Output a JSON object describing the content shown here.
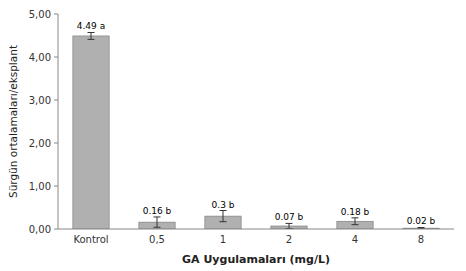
{
  "chart_data": {
    "type": "bar",
    "categories": [
      "Kontrol",
      "0,5",
      "1",
      "2",
      "4",
      "8"
    ],
    "values": [
      4.49,
      0.16,
      0.3,
      0.07,
      0.18,
      0.02
    ],
    "errors": [
      0.08,
      0.12,
      0.13,
      0.06,
      0.08,
      0.015
    ],
    "value_labels": [
      "4.49 a",
      "0.16 b",
      "0.3 b",
      "0.07 b",
      "0.18 b",
      "0.02 b"
    ],
    "data_labels": true,
    "color": "#b0b0b0",
    "x_label": "GA Uygulamaları (mg/L)",
    "y_label": "Sürgün ortalamaları/eksplant",
    "ylim": [
      0,
      5.0
    ],
    "yticks": [
      {
        "value": 0.0,
        "label": "0,00"
      },
      {
        "value": 1.0,
        "label": "1,00"
      },
      {
        "value": 2.0,
        "label": "2,00"
      },
      {
        "value": 3.0,
        "label": "3,00"
      },
      {
        "value": 4.0,
        "label": "4,00"
      },
      {
        "value": 5.0,
        "label": "5,00"
      }
    ],
    "grid": false
  }
}
